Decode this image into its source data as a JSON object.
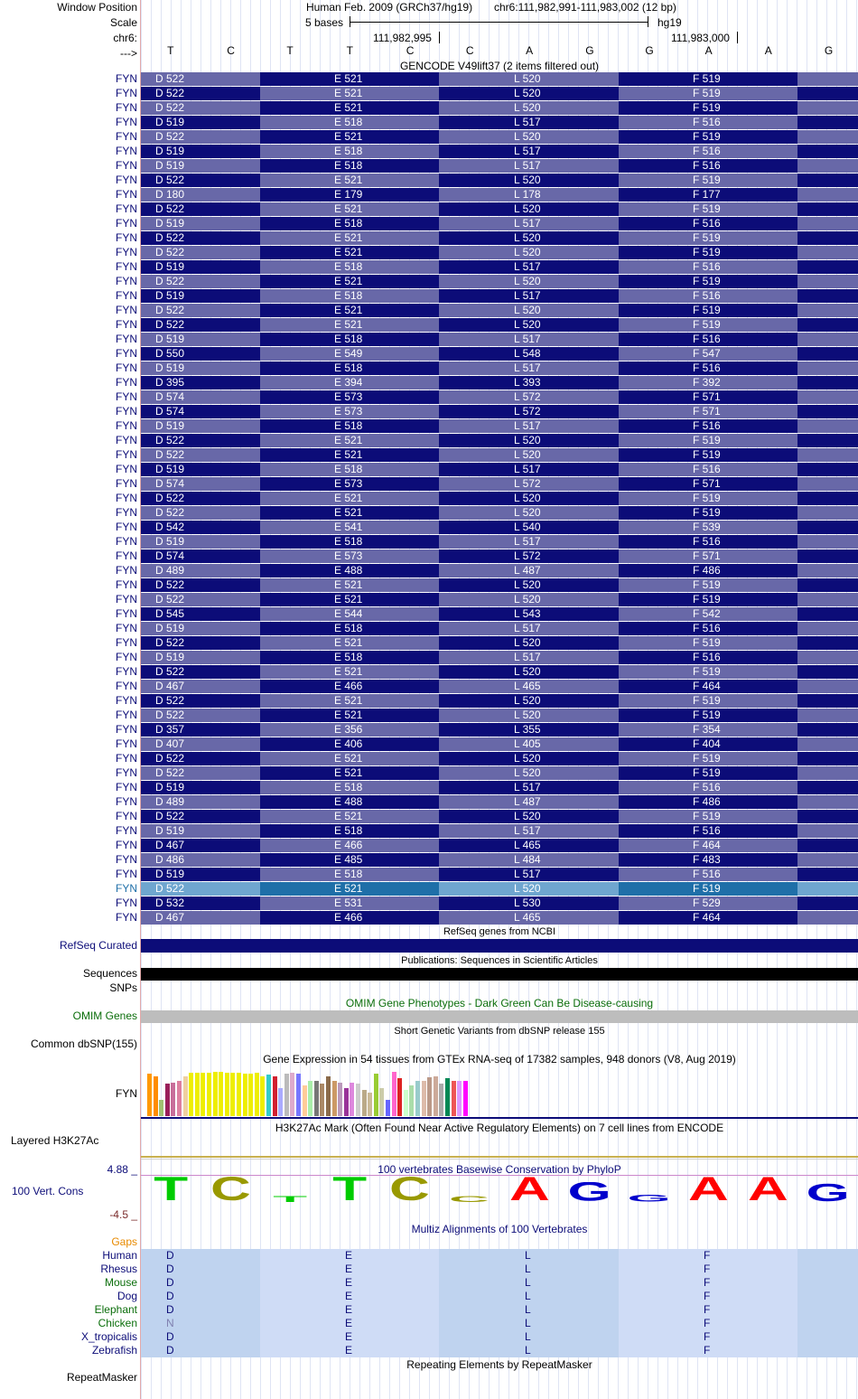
{
  "header": {
    "window_position_label": "Window Position",
    "scale_label": "Scale",
    "chr_label": "chr6:",
    "strand_label": "--->",
    "assembly": "Human Feb. 2009 (GRCh37/hg19)",
    "position": "chr6:111,982,991-111,983,002 (12 bp)",
    "scale_text": "5 bases",
    "db": "hg19",
    "ruler_ticks": [
      "111,982,995",
      "111,983,000"
    ],
    "bases": [
      "T",
      "C",
      "T",
      "T",
      "C",
      "C",
      "A",
      "G",
      "G",
      "A",
      "A",
      "G"
    ]
  },
  "gencode": {
    "title": "GENCODE V49lift37 (2 items filtered out)",
    "gene": "FYN",
    "highlight_row": 56,
    "colors": {
      "dark": "#0c0c78",
      "light": "#6868a8",
      "hi_dark": "#1f6fa8",
      "hi_light": "#6fa6cf"
    },
    "rows": [
      [
        "D 522",
        "E 521",
        "L 520",
        "F 519"
      ],
      [
        "D 522",
        "E 521",
        "L 520",
        "F 519"
      ],
      [
        "D 522",
        "E 521",
        "L 520",
        "F 519"
      ],
      [
        "D 519",
        "E 518",
        "L 517",
        "F 516"
      ],
      [
        "D 522",
        "E 521",
        "L 520",
        "F 519"
      ],
      [
        "D 519",
        "E 518",
        "L 517",
        "F 516"
      ],
      [
        "D 519",
        "E 518",
        "L 517",
        "F 516"
      ],
      [
        "D 522",
        "E 521",
        "L 520",
        "F 519"
      ],
      [
        "D 180",
        "E 179",
        "L 178",
        "F 177"
      ],
      [
        "D 522",
        "E 521",
        "L 520",
        "F 519"
      ],
      [
        "D 519",
        "E 518",
        "L 517",
        "F 516"
      ],
      [
        "D 522",
        "E 521",
        "L 520",
        "F 519"
      ],
      [
        "D 522",
        "E 521",
        "L 520",
        "F 519"
      ],
      [
        "D 519",
        "E 518",
        "L 517",
        "F 516"
      ],
      [
        "D 522",
        "E 521",
        "L 520",
        "F 519"
      ],
      [
        "D 519",
        "E 518",
        "L 517",
        "F 516"
      ],
      [
        "D 522",
        "E 521",
        "L 520",
        "F 519"
      ],
      [
        "D 522",
        "E 521",
        "L 520",
        "F 519"
      ],
      [
        "D 519",
        "E 518",
        "L 517",
        "F 516"
      ],
      [
        "D 550",
        "E 549",
        "L 548",
        "F 547"
      ],
      [
        "D 519",
        "E 518",
        "L 517",
        "F 516"
      ],
      [
        "D 395",
        "E 394",
        "L 393",
        "F 392"
      ],
      [
        "D 574",
        "E 573",
        "L 572",
        "F 571"
      ],
      [
        "D 574",
        "E 573",
        "L 572",
        "F 571"
      ],
      [
        "D 519",
        "E 518",
        "L 517",
        "F 516"
      ],
      [
        "D 522",
        "E 521",
        "L 520",
        "F 519"
      ],
      [
        "D 522",
        "E 521",
        "L 520",
        "F 519"
      ],
      [
        "D 519",
        "E 518",
        "L 517",
        "F 516"
      ],
      [
        "D 574",
        "E 573",
        "L 572",
        "F 571"
      ],
      [
        "D 522",
        "E 521",
        "L 520",
        "F 519"
      ],
      [
        "D 522",
        "E 521",
        "L 520",
        "F 519"
      ],
      [
        "D 542",
        "E 541",
        "L 540",
        "F 539"
      ],
      [
        "D 519",
        "E 518",
        "L 517",
        "F 516"
      ],
      [
        "D 574",
        "E 573",
        "L 572",
        "F 571"
      ],
      [
        "D 489",
        "E 488",
        "L 487",
        "F 486"
      ],
      [
        "D 522",
        "E 521",
        "L 520",
        "F 519"
      ],
      [
        "D 522",
        "E 521",
        "L 520",
        "F 519"
      ],
      [
        "D 545",
        "E 544",
        "L 543",
        "F 542"
      ],
      [
        "D 519",
        "E 518",
        "L 517",
        "F 516"
      ],
      [
        "D 522",
        "E 521",
        "L 520",
        "F 519"
      ],
      [
        "D 519",
        "E 518",
        "L 517",
        "F 516"
      ],
      [
        "D 522",
        "E 521",
        "L 520",
        "F 519"
      ],
      [
        "D 467",
        "E 466",
        "L 465",
        "F 464"
      ],
      [
        "D 522",
        "E 521",
        "L 520",
        "F 519"
      ],
      [
        "D 522",
        "E 521",
        "L 520",
        "F 519"
      ],
      [
        "D 357",
        "E 356",
        "L 355",
        "F 354"
      ],
      [
        "D 407",
        "E 406",
        "L 405",
        "F 404"
      ],
      [
        "D 522",
        "E 521",
        "L 520",
        "F 519"
      ],
      [
        "D 522",
        "E 521",
        "L 520",
        "F 519"
      ],
      [
        "D 519",
        "E 518",
        "L 517",
        "F 516"
      ],
      [
        "D 489",
        "E 488",
        "L 487",
        "F 486"
      ],
      [
        "D 522",
        "E 521",
        "L 520",
        "F 519"
      ],
      [
        "D 519",
        "E 518",
        "L 517",
        "F 516"
      ],
      [
        "D 467",
        "E 466",
        "L 465",
        "F 464"
      ],
      [
        "D 486",
        "E 485",
        "L 484",
        "F 483"
      ],
      [
        "D 519",
        "E 518",
        "L 517",
        "F 516"
      ],
      [
        "D 522",
        "E 521",
        "L 520",
        "F 519"
      ],
      [
        "D 532",
        "E 531",
        "L 530",
        "F 529"
      ],
      [
        "D 467",
        "E 466",
        "L 465",
        "F 464"
      ]
    ]
  },
  "refseq": {
    "title": "RefSeq genes from NCBI",
    "label": "RefSeq Curated",
    "color": "#0c0c78"
  },
  "pubs": {
    "title": "Publications: Sequences in Scientific Articles",
    "label_sequences": "Sequences",
    "label_snps": "SNPs"
  },
  "omim": {
    "title": "OMIM Gene Phenotypes - Dark Green Can Be Disease-causing",
    "label": "OMIM Genes"
  },
  "dbsnp": {
    "title": "Short Genetic Variants from dbSNP release 155",
    "label": "Common dbSNP(155)"
  },
  "gtex": {
    "title": "Gene Expression in 54 tissues from GTEx RNA-seq of 17382 samples, 948 donors (V8, Aug 2019)",
    "label": "FYN",
    "bars": [
      {
        "v": 0.9,
        "c": "#ff9900"
      },
      {
        "v": 0.85,
        "c": "#ff8c00"
      },
      {
        "v": 0.35,
        "c": "#a0c070"
      },
      {
        "v": 0.7,
        "c": "#9a1f5a"
      },
      {
        "v": 0.72,
        "c": "#c86e9a"
      },
      {
        "v": 0.75,
        "c": "#dd7fa0"
      },
      {
        "v": 0.85,
        "c": "#efd0a0"
      },
      {
        "v": 0.92,
        "c": "#eeee00"
      },
      {
        "v": 0.92,
        "c": "#eeee00"
      },
      {
        "v": 0.92,
        "c": "#eeee00"
      },
      {
        "v": 0.92,
        "c": "#eeee00"
      },
      {
        "v": 0.95,
        "c": "#eeee00"
      },
      {
        "v": 0.95,
        "c": "#eeee00"
      },
      {
        "v": 0.92,
        "c": "#eeee00"
      },
      {
        "v": 0.92,
        "c": "#eeee00"
      },
      {
        "v": 0.92,
        "c": "#eeee00"
      },
      {
        "v": 0.9,
        "c": "#eeee00"
      },
      {
        "v": 0.9,
        "c": "#eeee00"
      },
      {
        "v": 0.92,
        "c": "#eeee00"
      },
      {
        "v": 0.85,
        "c": "#eeee00"
      },
      {
        "v": 0.88,
        "c": "#33cccc"
      },
      {
        "v": 0.85,
        "c": "#d11f2f"
      },
      {
        "v": 0.6,
        "c": "#aaaaff"
      },
      {
        "v": 0.9,
        "c": "#bbbbbb"
      },
      {
        "v": 0.92,
        "c": "#ddaacc"
      },
      {
        "v": 0.9,
        "c": "#7777ff"
      },
      {
        "v": 0.65,
        "c": "#ffcc99"
      },
      {
        "v": 0.75,
        "c": "#aaeeaa"
      },
      {
        "v": 0.75,
        "c": "#777777"
      },
      {
        "v": 0.7,
        "c": "#aa8866"
      },
      {
        "v": 0.85,
        "c": "#8b6b4b"
      },
      {
        "v": 0.75,
        "c": "#cc9966"
      },
      {
        "v": 0.72,
        "c": "#bb99bb"
      },
      {
        "v": 0.6,
        "c": "#993399"
      },
      {
        "v": 0.72,
        "c": "#dd88dd"
      },
      {
        "v": 0.7,
        "c": "#cccccc"
      },
      {
        "v": 0.55,
        "c": "#bbaa88"
      },
      {
        "v": 0.5,
        "c": "#ccbb99"
      },
      {
        "v": 0.9,
        "c": "#99cc33"
      },
      {
        "v": 0.6,
        "c": "#ccccaa"
      },
      {
        "v": 0.35,
        "c": "#6666ff"
      },
      {
        "v": 0.95,
        "c": "#ff66cc"
      },
      {
        "v": 0.8,
        "c": "#dd2222"
      },
      {
        "v": 0.55,
        "c": "#ccffcc"
      },
      {
        "v": 0.65,
        "c": "#aaddaa"
      },
      {
        "v": 0.75,
        "c": "#99cccc"
      },
      {
        "v": 0.75,
        "c": "#ddbbaa"
      },
      {
        "v": 0.82,
        "c": "#bb9988"
      },
      {
        "v": 0.85,
        "c": "#ccaa99"
      },
      {
        "v": 0.7,
        "c": "#aaaaaa"
      },
      {
        "v": 0.8,
        "c": "#008855"
      },
      {
        "v": 0.75,
        "c": "#ee5555"
      },
      {
        "v": 0.75,
        "c": "#dd99ff"
      },
      {
        "v": 0.75,
        "c": "#ff00ff"
      }
    ]
  },
  "h3k27ac": {
    "title": "H3K27Ac Mark (Often Found Near Active Regulatory Elements) on 7 cell lines from ENCODE",
    "label": "Layered H3K27Ac"
  },
  "cons": {
    "title": "100 vertebrates Basewise Conservation by PhyloP",
    "label": "100 Vert. Cons",
    "ymax": "4.88 _",
    "ymin": "-4.5 _",
    "logo": [
      {
        "b": "T",
        "h": 1.0,
        "c": "#00cc00"
      },
      {
        "b": "C",
        "h": 1.0,
        "c": "#999900"
      },
      {
        "b": "T",
        "h": 0.25,
        "c": "#00cc00"
      },
      {
        "b": "T",
        "h": 1.0,
        "c": "#00cc00"
      },
      {
        "b": "C",
        "h": 1.0,
        "c": "#999900"
      },
      {
        "b": "C",
        "h": 0.25,
        "c": "#999900"
      },
      {
        "b": "A",
        "h": 1.0,
        "c": "#ff0000"
      },
      {
        "b": "G",
        "h": 0.8,
        "c": "#0000cc"
      },
      {
        "b": "G",
        "h": 0.3,
        "c": "#0000cc"
      },
      {
        "b": "A",
        "h": 1.0,
        "c": "#ff0000"
      },
      {
        "b": "A",
        "h": 1.0,
        "c": "#ff0000"
      },
      {
        "b": "G",
        "h": 0.75,
        "c": "#0000cc"
      }
    ]
  },
  "multiz": {
    "title": "Multiz Alignments of 100 Vertebrates",
    "gaps_label": "Gaps",
    "species": [
      {
        "name": "Human",
        "color": "#0c0c78",
        "aa": [
          "D",
          "E",
          "L",
          "F"
        ]
      },
      {
        "name": "Rhesus",
        "color": "#0c0c78",
        "aa": [
          "D",
          "E",
          "L",
          "F"
        ]
      },
      {
        "name": "Mouse",
        "color": "#0b6e0b",
        "aa": [
          "D",
          "E",
          "L",
          "F"
        ]
      },
      {
        "name": "Dog",
        "color": "#0c0c78",
        "aa": [
          "D",
          "E",
          "L",
          "F"
        ]
      },
      {
        "name": "Elephant",
        "color": "#0b6e0b",
        "aa": [
          "D",
          "E",
          "L",
          "F"
        ]
      },
      {
        "name": "Chicken",
        "color": "#0b6e0b",
        "aa": [
          "N",
          "E",
          "L",
          "F"
        ]
      },
      {
        "name": "X_tropicalis",
        "color": "#0c0c78",
        "aa": [
          "D",
          "E",
          "L",
          "F"
        ]
      },
      {
        "name": "Zebrafish",
        "color": "#0c0c78",
        "aa": [
          "D",
          "E",
          "L",
          "F"
        ]
      }
    ]
  },
  "rmsk": {
    "title": "Repeating Elements by RepeatMasker",
    "label": "RepeatMasker"
  }
}
